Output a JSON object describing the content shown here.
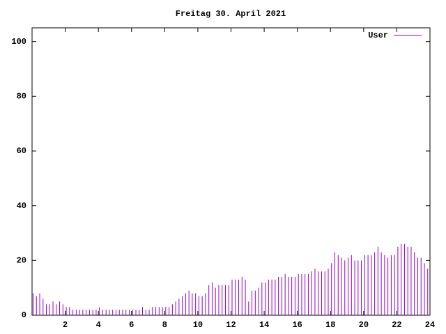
{
  "chart_data": {
    "type": "impulses",
    "title": "Freitag 30. April 2021",
    "x": [
      0,
      0.2,
      0.4,
      0.6,
      0.8,
      1,
      1.2,
      1.4,
      1.6,
      1.8,
      2,
      2.2,
      2.4,
      2.6,
      2.8,
      3,
      3.2,
      3.4,
      3.6,
      3.8,
      4,
      4.2,
      4.4,
      4.6,
      4.8,
      5,
      5.2,
      5.4,
      5.6,
      5.8,
      6,
      6.2,
      6.4,
      6.6,
      6.8,
      7,
      7.2,
      7.4,
      7.6,
      7.8,
      8,
      8.2,
      8.4,
      8.6,
      8.8,
      9,
      9.2,
      9.4,
      9.6,
      9.8,
      10,
      10.2,
      10.4,
      10.6,
      10.8,
      11,
      11.2,
      11.4,
      11.6,
      11.8,
      12,
      12.2,
      12.4,
      12.6,
      12.8,
      13,
      13.2,
      13.4,
      13.6,
      13.8,
      14,
      14.2,
      14.4,
      14.6,
      14.8,
      15,
      15.2,
      15.4,
      15.6,
      15.8,
      16,
      16.2,
      16.4,
      16.6,
      16.8,
      17,
      17.2,
      17.4,
      17.6,
      17.8,
      18,
      18.2,
      18.4,
      18.6,
      18.8,
      19,
      19.2,
      19.4,
      19.6,
      19.8,
      20,
      20.2,
      20.4,
      20.6,
      20.8,
      21,
      21.2,
      21.4,
      21.6,
      21.8,
      22,
      22.2,
      22.4,
      22.6,
      22.8,
      23,
      23.2,
      23.4,
      23.6,
      23.8
    ],
    "series": [
      {
        "name": "User",
        "color": "#9400d3",
        "values": [
          8,
          7,
          8,
          6,
          4,
          4,
          5,
          4,
          5,
          4,
          3,
          3,
          2,
          2,
          2,
          2,
          2,
          2,
          2,
          2,
          3,
          2,
          2,
          2,
          2,
          2,
          2,
          2,
          2,
          2,
          2,
          2,
          2,
          3,
          2,
          2,
          3,
          3,
          3,
          3,
          3,
          3,
          4,
          5,
          6,
          7,
          8,
          9,
          8,
          8,
          7,
          7,
          8,
          11,
          12,
          10,
          11,
          11,
          11,
          11,
          13,
          13,
          13,
          14,
          13,
          5,
          9,
          9,
          10,
          12,
          12,
          13,
          13,
          13,
          14,
          14,
          15,
          14,
          14,
          14,
          15,
          15,
          15,
          15,
          16,
          17,
          16,
          16,
          16,
          17,
          19,
          23,
          22,
          21,
          20,
          21,
          22,
          20,
          20,
          20,
          22,
          22,
          22,
          23,
          25,
          23,
          22,
          21,
          22,
          22,
          25,
          26,
          26,
          25,
          25,
          23,
          21,
          21,
          19,
          17
        ]
      }
    ],
    "xlim": [
      0,
      24
    ],
    "xticks": [
      2,
      4,
      6,
      8,
      10,
      12,
      14,
      16,
      18,
      20,
      22,
      24
    ],
    "ylim": [
      0,
      105
    ],
    "yticks": [
      0,
      20,
      40,
      60,
      80,
      100
    ],
    "legend": "upper right"
  }
}
